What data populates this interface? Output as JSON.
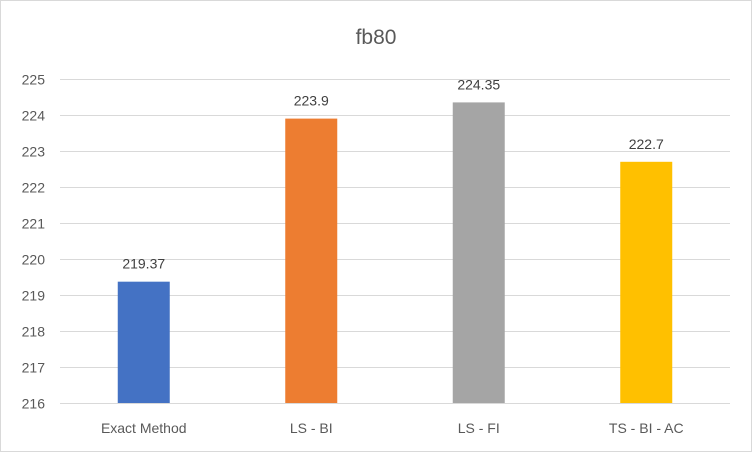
{
  "chart_data": {
    "type": "bar",
    "title": "fb80",
    "xlabel": "",
    "ylabel": "",
    "categories": [
      "Exact Method",
      "LS - BI",
      "LS - FI",
      "TS - BI - AC"
    ],
    "values": [
      219.37,
      223.9,
      224.35,
      222.7
    ],
    "value_labels": [
      "219.37",
      "223.9",
      "224.35",
      "222.7"
    ],
    "colors": [
      "#4472C4",
      "#ED7D31",
      "#A5A5A5",
      "#FFC000"
    ],
    "ylim": [
      216,
      225
    ],
    "yticks": [
      216,
      217,
      218,
      219,
      220,
      221,
      222,
      223,
      224,
      225
    ],
    "grid": true,
    "legend": "none"
  }
}
